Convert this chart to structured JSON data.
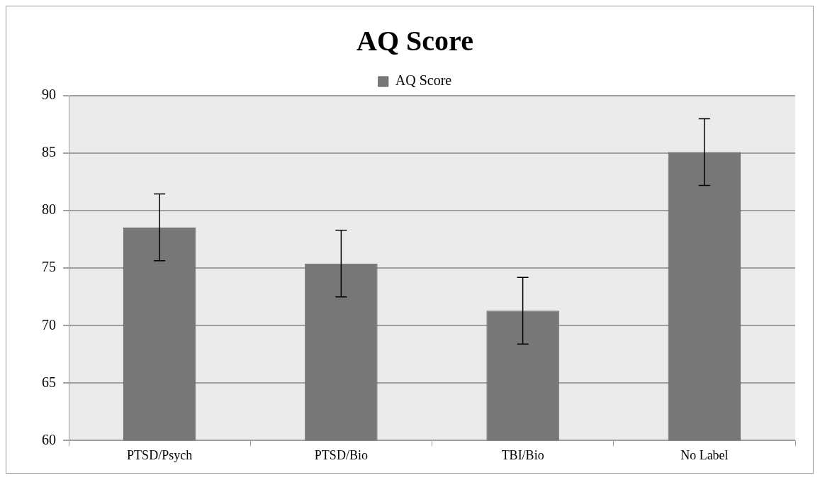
{
  "chart_data": {
    "type": "bar",
    "title": "AQ Score",
    "categories": [
      "PTSD/Psych",
      "PTSD/Bio",
      "TBI/Bio",
      "No Label"
    ],
    "series": [
      {
        "name": "AQ Score",
        "color": "#777777",
        "values": [
          78.55,
          75.4,
          71.3,
          85.1
        ],
        "errors": [
          2.9,
          2.9,
          2.9,
          2.9
        ]
      }
    ],
    "ylim": [
      60,
      90
    ],
    "yticks": [
      60,
      65,
      70,
      75,
      80,
      85,
      90
    ],
    "grid": "y",
    "legend": "top"
  }
}
